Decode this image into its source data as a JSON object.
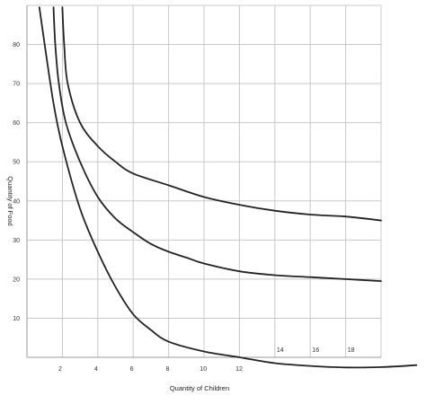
{
  "chart_data": {
    "type": "line",
    "title": "",
    "xlabel": "Quantity of Children",
    "ylabel": "Quantity of Food",
    "xlim": [
      0,
      20
    ],
    "ylim": [
      0,
      90
    ],
    "grid": true,
    "x_ticks": [
      {
        "value": 2,
        "label": "2"
      },
      {
        "value": 4,
        "label": "4"
      },
      {
        "value": 6,
        "label": "6"
      },
      {
        "value": 8,
        "label": "8"
      },
      {
        "value": 10,
        "label": "10"
      },
      {
        "value": 12,
        "label": "12"
      },
      {
        "value": 14,
        "label": "14"
      },
      {
        "value": 16,
        "label": "16"
      },
      {
        "value": 18,
        "label": "18"
      }
    ],
    "y_ticks": [
      {
        "value": 10,
        "label": "10"
      },
      {
        "value": 20,
        "label": "20"
      },
      {
        "value": 30,
        "label": "30"
      },
      {
        "value": 40,
        "label": "40"
      },
      {
        "value": 50,
        "label": "50"
      },
      {
        "value": 60,
        "label": "60"
      },
      {
        "value": 70,
        "label": "70"
      },
      {
        "value": 80,
        "label": "80"
      }
    ],
    "series": [
      {
        "points": [
          [
            1.5,
            89.5
          ],
          [
            1.6,
            80
          ],
          [
            1.8,
            70
          ],
          [
            2.2,
            60
          ],
          [
            3,
            50
          ],
          [
            4,
            41
          ],
          [
            5,
            35.5
          ],
          [
            6,
            32
          ],
          [
            7,
            29
          ],
          [
            8,
            27
          ],
          [
            9,
            25.5
          ],
          [
            10,
            24
          ],
          [
            12,
            22
          ],
          [
            14,
            21
          ],
          [
            16,
            20.5
          ],
          [
            18,
            20
          ],
          [
            20,
            19.5
          ]
        ]
      },
      {
        "points": [
          [
            2,
            89.5
          ],
          [
            2.1,
            80
          ],
          [
            2.3,
            70
          ],
          [
            3,
            60
          ],
          [
            4,
            54
          ],
          [
            5,
            50
          ],
          [
            6,
            47
          ],
          [
            8,
            44
          ],
          [
            10,
            41
          ],
          [
            12,
            39
          ],
          [
            14,
            37.5
          ],
          [
            16,
            36.5
          ],
          [
            18,
            36
          ],
          [
            20,
            35
          ]
        ]
      },
      {
        "points": [
          [
            0.7,
            89.5
          ],
          [
            1,
            80
          ],
          [
            1.5,
            65
          ],
          [
            2,
            54
          ],
          [
            3,
            38
          ],
          [
            4,
            27
          ],
          [
            5,
            18
          ],
          [
            6,
            11
          ],
          [
            7,
            7
          ],
          [
            8,
            4
          ],
          [
            10,
            1.5
          ],
          [
            12,
            0
          ],
          [
            14,
            -1.5
          ],
          [
            16,
            -2.2
          ],
          [
            18,
            -2.6
          ],
          [
            20,
            -2.5
          ],
          [
            22,
            -2
          ]
        ]
      }
    ]
  }
}
